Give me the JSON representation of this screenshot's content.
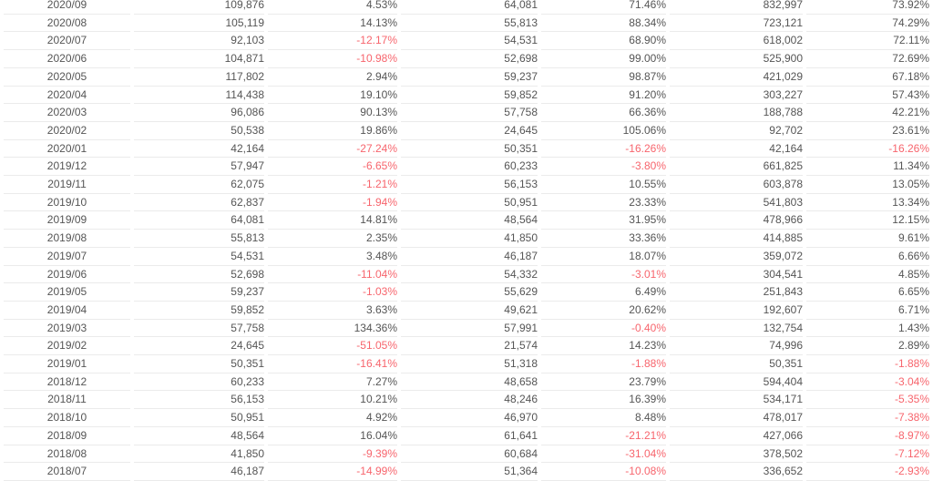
{
  "colors": {
    "text": "#555555",
    "negative": "#f7656d",
    "row_border": "#ebebeb",
    "background": "#ffffff"
  },
  "table": {
    "rows": [
      [
        "2020/09",
        "109,876",
        "4.53%",
        "64,081",
        "71.46%",
        "832,997",
        "73.92%"
      ],
      [
        "2020/08",
        "105,119",
        "14.13%",
        "55,813",
        "88.34%",
        "723,121",
        "74.29%"
      ],
      [
        "2020/07",
        "92,103",
        "-12.17%",
        "54,531",
        "68.90%",
        "618,002",
        "72.11%"
      ],
      [
        "2020/06",
        "104,871",
        "-10.98%",
        "52,698",
        "99.00%",
        "525,900",
        "72.69%"
      ],
      [
        "2020/05",
        "117,802",
        "2.94%",
        "59,237",
        "98.87%",
        "421,029",
        "67.18%"
      ],
      [
        "2020/04",
        "114,438",
        "19.10%",
        "59,852",
        "91.20%",
        "303,227",
        "57.43%"
      ],
      [
        "2020/03",
        "96,086",
        "90.13%",
        "57,758",
        "66.36%",
        "188,788",
        "42.21%"
      ],
      [
        "2020/02",
        "50,538",
        "19.86%",
        "24,645",
        "105.06%",
        "92,702",
        "23.61%"
      ],
      [
        "2020/01",
        "42,164",
        "-27.24%",
        "50,351",
        "-16.26%",
        "42,164",
        "-16.26%"
      ],
      [
        "2019/12",
        "57,947",
        "-6.65%",
        "60,233",
        "-3.80%",
        "661,825",
        "11.34%"
      ],
      [
        "2019/11",
        "62,075",
        "-1.21%",
        "56,153",
        "10.55%",
        "603,878",
        "13.05%"
      ],
      [
        "2019/10",
        "62,837",
        "-1.94%",
        "50,951",
        "23.33%",
        "541,803",
        "13.34%"
      ],
      [
        "2019/09",
        "64,081",
        "14.81%",
        "48,564",
        "31.95%",
        "478,966",
        "12.15%"
      ],
      [
        "2019/08",
        "55,813",
        "2.35%",
        "41,850",
        "33.36%",
        "414,885",
        "9.61%"
      ],
      [
        "2019/07",
        "54,531",
        "3.48%",
        "46,187",
        "18.07%",
        "359,072",
        "6.66%"
      ],
      [
        "2019/06",
        "52,698",
        "-11.04%",
        "54,332",
        "-3.01%",
        "304,541",
        "4.85%"
      ],
      [
        "2019/05",
        "59,237",
        "-1.03%",
        "55,629",
        "6.49%",
        "251,843",
        "6.65%"
      ],
      [
        "2019/04",
        "59,852",
        "3.63%",
        "49,621",
        "20.62%",
        "192,607",
        "6.71%"
      ],
      [
        "2019/03",
        "57,758",
        "134.36%",
        "57,991",
        "-0.40%",
        "132,754",
        "1.43%"
      ],
      [
        "2019/02",
        "24,645",
        "-51.05%",
        "21,574",
        "14.23%",
        "74,996",
        "2.89%"
      ],
      [
        "2019/01",
        "50,351",
        "-16.41%",
        "51,318",
        "-1.88%",
        "50,351",
        "-1.88%"
      ],
      [
        "2018/12",
        "60,233",
        "7.27%",
        "48,658",
        "23.79%",
        "594,404",
        "-3.04%"
      ],
      [
        "2018/11",
        "56,153",
        "10.21%",
        "48,246",
        "16.39%",
        "534,171",
        "-5.35%"
      ],
      [
        "2018/10",
        "50,951",
        "4.92%",
        "46,970",
        "8.48%",
        "478,017",
        "-7.38%"
      ],
      [
        "2018/09",
        "48,564",
        "16.04%",
        "61,641",
        "-21.21%",
        "427,066",
        "-8.97%"
      ],
      [
        "2018/08",
        "41,850",
        "-9.39%",
        "60,684",
        "-31.04%",
        "378,502",
        "-7.12%"
      ],
      [
        "2018/07",
        "46,187",
        "-14.99%",
        "51,364",
        "-10.08%",
        "336,652",
        "-2.93%"
      ]
    ]
  }
}
